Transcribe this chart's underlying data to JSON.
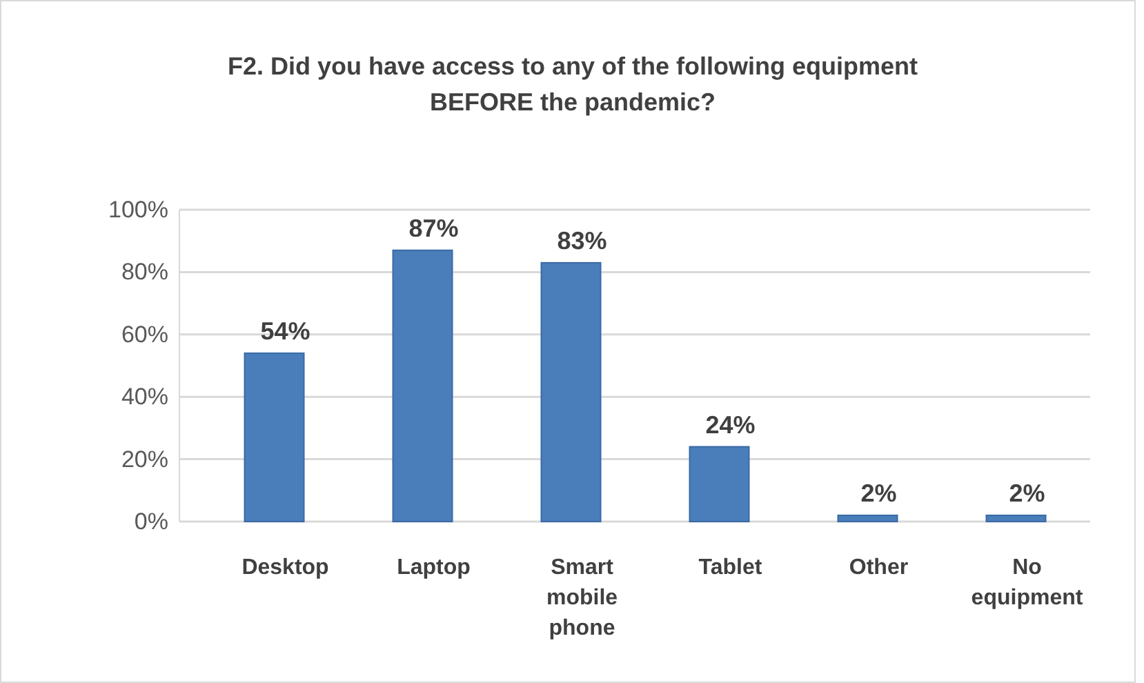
{
  "chart_data": {
    "type": "bar",
    "title": "F2. Did you have access to any of the following equipment BEFORE the pandemic?",
    "categories": [
      "Desktop",
      "Laptop",
      "Smart mobile phone",
      "Tablet",
      "Other",
      "No equipment"
    ],
    "values": [
      54,
      87,
      83,
      24,
      2,
      2
    ],
    "value_labels": [
      "54%",
      "87%",
      "83%",
      "24%",
      "2%",
      "2%"
    ],
    "color": "#4a7ebb",
    "ylim": [
      0,
      100
    ],
    "yticks": [
      {
        "value": 0,
        "label": "0%"
      },
      {
        "value": 20,
        "label": "20%"
      },
      {
        "value": 40,
        "label": "40%"
      },
      {
        "value": 60,
        "label": "60%"
      },
      {
        "value": 80,
        "label": "80%"
      },
      {
        "value": 100,
        "label": "100%"
      }
    ],
    "grid": "y"
  }
}
